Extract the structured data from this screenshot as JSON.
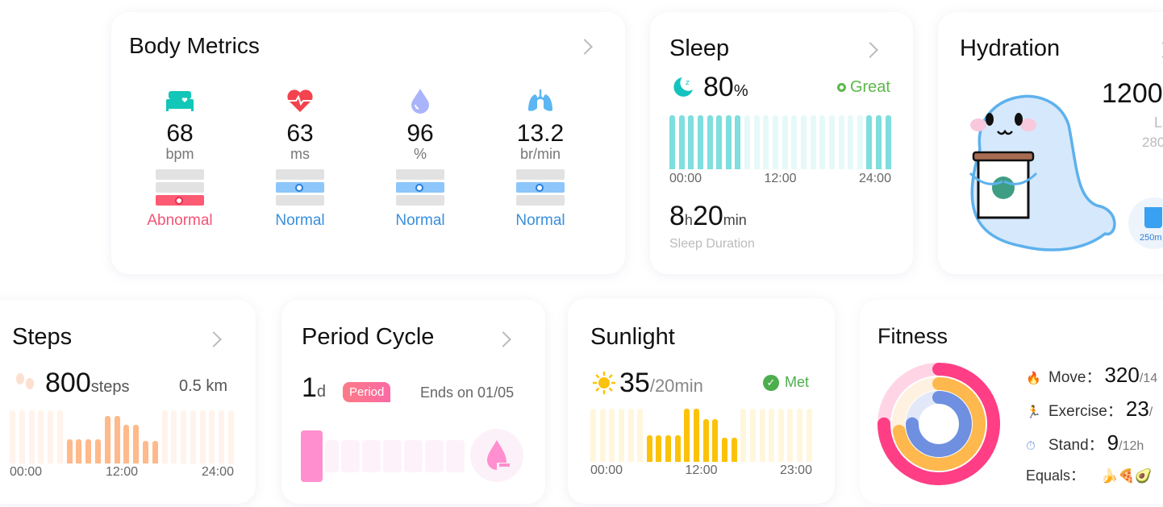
{
  "body_metrics": {
    "title": "Body Metrics",
    "items": [
      {
        "icon": "bed-heart-icon",
        "value": "68",
        "unit": "bpm",
        "status": "Abnormal",
        "level": 0,
        "color": "#f25474"
      },
      {
        "icon": "heart-pulse-icon",
        "value": "63",
        "unit": "ms",
        "status": "Normal",
        "level": 1,
        "color": "#3a8fdc"
      },
      {
        "icon": "droplet-icon",
        "value": "96",
        "unit": "%",
        "status": "Normal",
        "level": 1,
        "color": "#3a8fdc"
      },
      {
        "icon": "lungs-icon",
        "value": "13.2",
        "unit": "br/min",
        "status": "Normal",
        "level": 1,
        "color": "#3a8fdc"
      }
    ]
  },
  "sleep": {
    "title": "Sleep",
    "score": "80",
    "score_unit": "%",
    "rating": "Great",
    "bars_active": [
      1,
      1,
      1,
      1,
      1,
      1,
      1,
      1,
      0,
      0,
      0,
      0,
      0,
      0,
      0,
      0,
      0,
      0,
      0,
      0,
      0,
      1,
      1,
      1
    ],
    "ticks": [
      "00:00",
      "12:00",
      "24:00"
    ],
    "hours": "8",
    "hours_unit": "h",
    "minutes": "20",
    "minutes_unit": "min",
    "duration_label": "Sleep Duration",
    "color": "#7fdede"
  },
  "hydration": {
    "title": "Hydration",
    "value": "1200",
    "unit": "L",
    "goal": "280",
    "cup_label": "250m"
  },
  "steps": {
    "title": "Steps",
    "value": "800",
    "unit": "steps",
    "distance": "0.5 km",
    "values": [
      0,
      0,
      0,
      0,
      0,
      0,
      0.45,
      0.45,
      0.45,
      0.45,
      0.9,
      0.9,
      0.72,
      0.72,
      0.42,
      0.42,
      0,
      0,
      0,
      0,
      0,
      0,
      0,
      0
    ],
    "ticks": [
      "00:00",
      "12:00",
      "24:00"
    ],
    "color": "#ffb98a"
  },
  "period": {
    "title": "Period Cycle",
    "days": "1",
    "days_unit": "d",
    "badge": "Period",
    "ends": "Ends on 01/05",
    "color": "#ff8fce"
  },
  "sunlight": {
    "title": "Sunlight",
    "value": "35",
    "goal": "/20min",
    "status": "Met",
    "values": [
      0,
      0,
      0,
      0,
      0,
      0,
      0.5,
      0.5,
      0.5,
      0.5,
      1,
      1,
      0.8,
      0.8,
      0.45,
      0.45,
      0,
      0,
      0,
      0,
      0,
      0,
      0,
      0
    ],
    "ticks": [
      "00:00",
      "12:00",
      "23:00"
    ],
    "color": "#fcc20a"
  },
  "fitness": {
    "title": "Fitness",
    "rows": [
      {
        "icon": "flame-icon",
        "label": "Move：",
        "value": "320",
        "goal": "/14"
      },
      {
        "icon": "exercise-icon",
        "label": "Exercise：",
        "value": "23",
        "goal": "/"
      },
      {
        "icon": "stand-icon",
        "label": "Stand：",
        "value": "9",
        "goal": "/12h"
      }
    ],
    "equals_label": "Equals：",
    "equals_icons": "🍌🍕🥑",
    "rings": [
      {
        "name": "move",
        "fraction": 0.75,
        "color": "#ff3e86",
        "track": "#ffd5e6"
      },
      {
        "name": "exercise",
        "fraction": 0.72,
        "color": "#ffb84d",
        "track": "#fff1e0"
      },
      {
        "name": "stand",
        "fraction": 0.75,
        "color": "#6f8fe0",
        "track": "#e2e8f8"
      }
    ]
  }
}
